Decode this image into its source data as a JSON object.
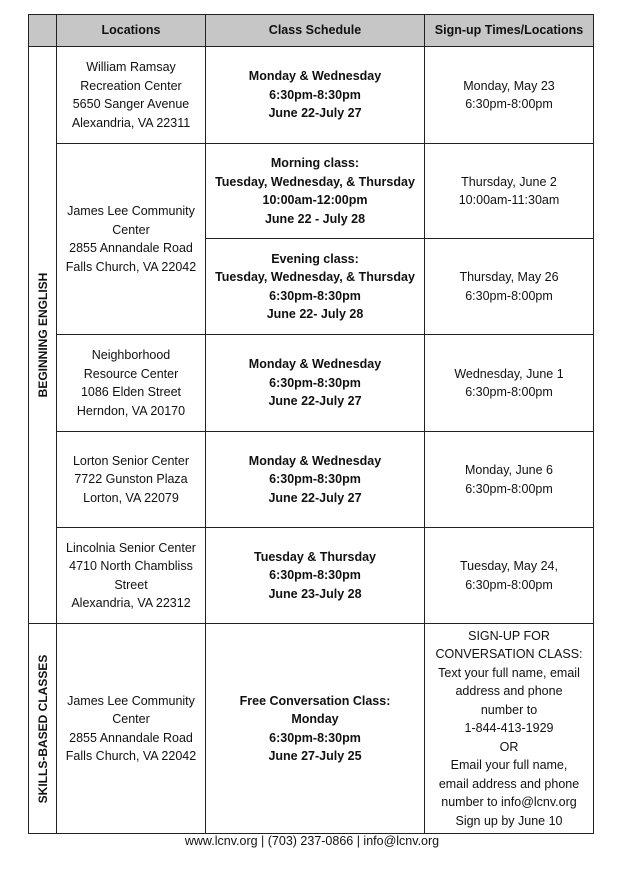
{
  "header": {
    "side": "",
    "locations": "Locations",
    "schedule": "Class Schedule",
    "signup": "Sign-up Times/Locations"
  },
  "sections": {
    "beginning": "BEGINNING ENGLISH",
    "skills": "SKILLS-BASED CLASSES"
  },
  "rows": [
    {
      "location": [
        "William Ramsay",
        "Recreation Center",
        "5650 Sanger Avenue",
        "Alexandria, VA 22311"
      ],
      "schedule": [
        "Monday & Wednesday",
        "6:30pm-8:30pm",
        "June 22-July 27"
      ],
      "signup": [
        "Monday, May 23",
        "6:30pm-8:00pm"
      ]
    },
    {
      "location": [
        "James Lee Community",
        "Center",
        "2855 Annandale Road",
        "Falls Church, VA 22042"
      ],
      "schedule": [
        "Morning class:",
        "Tuesday, Wednesday, & Thursday",
        "10:00am-12:00pm",
        "June 22 - July 28"
      ],
      "signup": [
        "Thursday, June 2",
        "10:00am-11:30am"
      ]
    },
    {
      "schedule": [
        "Evening class:",
        "Tuesday, Wednesday, & Thursday",
        "6:30pm-8:30pm",
        "June 22- July 28"
      ],
      "signup": [
        "Thursday, May 26",
        "6:30pm-8:00pm"
      ]
    },
    {
      "location": [
        "Neighborhood",
        "Resource Center",
        "1086 Elden Street",
        "Herndon, VA 20170"
      ],
      "schedule": [
        "Monday & Wednesday",
        "6:30pm-8:30pm",
        "June 22-July 27"
      ],
      "signup": [
        "Wednesday, June 1",
        "6:30pm-8:00pm"
      ]
    },
    {
      "location": [
        "Lorton Senior Center",
        "7722 Gunston Plaza",
        "Lorton, VA 22079"
      ],
      "schedule": [
        "Monday & Wednesday",
        "6:30pm-8:30pm",
        "June 22-July 27"
      ],
      "signup": [
        "Monday, June 6",
        "6:30pm-8:00pm"
      ]
    },
    {
      "location": [
        "Lincolnia Senior Center",
        "4710 North Chambliss",
        "Street",
        "Alexandria, VA 22312"
      ],
      "schedule": [
        "Tuesday & Thursday",
        "6:30pm-8:30pm",
        "June 23-July 28"
      ],
      "signup": [
        "Tuesday, May 24,",
        "6:30pm-8:00pm"
      ]
    },
    {
      "location": [
        "James Lee Community",
        "Center",
        "2855 Annandale Road",
        "Falls Church, VA 22042"
      ],
      "schedule": [
        "Free Conversation Class:",
        "Monday",
        "6:30pm-8:30pm",
        "June 27-July 25"
      ],
      "signup": [
        "SIGN-UP FOR",
        "CONVERSATION CLASS:",
        "Text your full name, email",
        "address and phone",
        "number to",
        "1-844-413-1929",
        "OR",
        "Email your full name,",
        "email address and phone",
        "number to info@lcnv.org",
        "Sign up by June 10"
      ]
    }
  ],
  "footer": "www.lcnv.org | (703) 237-0866 | info@lcnv.org"
}
